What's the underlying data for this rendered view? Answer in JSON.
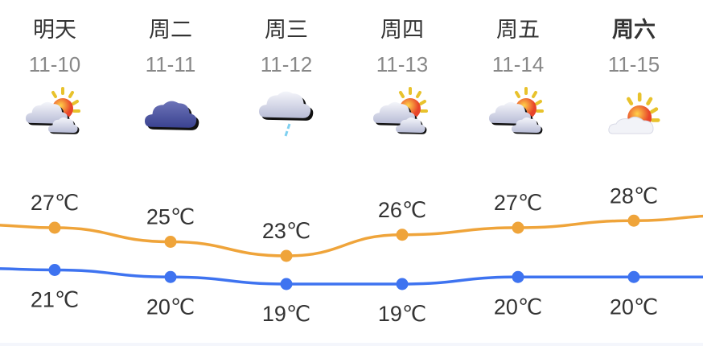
{
  "forecast": [
    {
      "day": "明天",
      "date": "11-10",
      "icon": "partly-cloudy-icon",
      "bold": false
    },
    {
      "day": "周二",
      "date": "11-11",
      "icon": "overcast-icon",
      "bold": false
    },
    {
      "day": "周三",
      "date": "11-12",
      "icon": "light-rain-icon",
      "bold": false
    },
    {
      "day": "周四",
      "date": "11-13",
      "icon": "partly-cloudy-icon",
      "bold": false
    },
    {
      "day": "周五",
      "date": "11-14",
      "icon": "partly-cloudy-icon",
      "bold": false
    },
    {
      "day": "周六",
      "date": "11-15",
      "icon": "mostly-sunny-icon",
      "bold": true
    }
  ],
  "chart_data": {
    "type": "line",
    "categories": [
      "11-10",
      "11-11",
      "11-12",
      "11-13",
      "11-14",
      "11-15"
    ],
    "unit": "℃",
    "series": [
      {
        "key": "high",
        "values": [
          27,
          25,
          23,
          26,
          27,
          28
        ],
        "labels": [
          "27℃",
          "25℃",
          "23℃",
          "26℃",
          "27℃",
          "28℃"
        ],
        "color": "#EFA43A"
      },
      {
        "key": "low",
        "values": [
          21,
          20,
          19,
          19,
          20,
          20
        ],
        "labels": [
          "21℃",
          "20℃",
          "19℃",
          "19℃",
          "20℃",
          "20℃"
        ],
        "color": "#3E73F0"
      }
    ],
    "grid": false,
    "legend": "none"
  }
}
